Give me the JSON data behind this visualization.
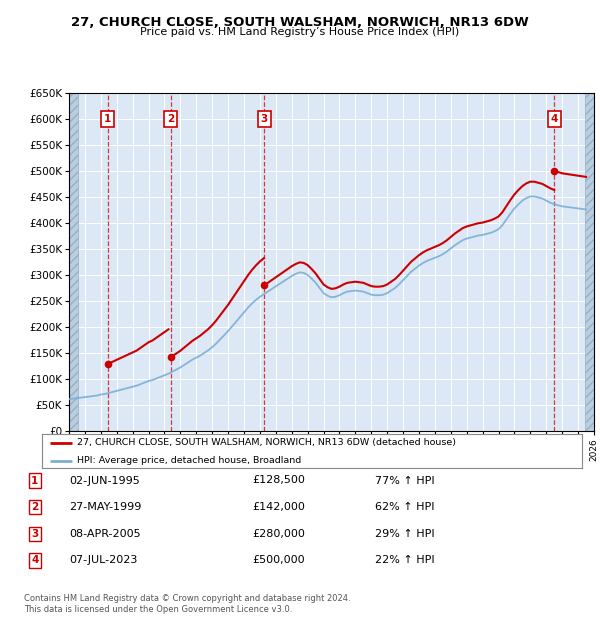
{
  "title": "27, CHURCH CLOSE, SOUTH WALSHAM, NORWICH, NR13 6DW",
  "subtitle": "Price paid vs. HM Land Registry’s House Price Index (HPI)",
  "ylim": [
    0,
    650000
  ],
  "yticks": [
    0,
    50000,
    100000,
    150000,
    200000,
    250000,
    300000,
    350000,
    400000,
    450000,
    500000,
    550000,
    600000,
    650000
  ],
  "xlim_left": 1993.0,
  "xlim_right": 2026.0,
  "plot_bg_color": "#dce8f5",
  "hatch_color": "#c5d5e8",
  "grid_color": "#ffffff",
  "purchases": [
    {
      "num": 1,
      "date": "02-JUN-1995",
      "year": 1995.42,
      "price": 128500,
      "pct": "77%",
      "dir": "↑"
    },
    {
      "num": 2,
      "date": "27-MAY-1999",
      "year": 1999.4,
      "price": 142000,
      "pct": "62%",
      "dir": "↑"
    },
    {
      "num": 3,
      "date": "08-APR-2005",
      "year": 2005.27,
      "price": 280000,
      "pct": "29%",
      "dir": "↑"
    },
    {
      "num": 4,
      "date": "07-JUL-2023",
      "year": 2023.51,
      "price": 500000,
      "pct": "22%",
      "dir": "↑"
    }
  ],
  "legend_label1": "27, CHURCH CLOSE, SOUTH WALSHAM, NORWICH, NR13 6DW (detached house)",
  "legend_label2": "HPI: Average price, detached house, Broadland",
  "footer1": "Contains HM Land Registry data © Crown copyright and database right 2024.",
  "footer2": "This data is licensed under the Open Government Licence v3.0.",
  "red_line_color": "#cc0000",
  "blue_line_color": "#7bafd4",
  "hpi_years": [
    1993.0,
    1993.25,
    1993.5,
    1993.75,
    1994.0,
    1994.25,
    1994.5,
    1994.75,
    1995.0,
    1995.25,
    1995.5,
    1995.75,
    1996.0,
    1996.25,
    1996.5,
    1996.75,
    1997.0,
    1997.25,
    1997.5,
    1997.75,
    1998.0,
    1998.25,
    1998.5,
    1998.75,
    1999.0,
    1999.25,
    1999.5,
    1999.75,
    2000.0,
    2000.25,
    2000.5,
    2000.75,
    2001.0,
    2001.25,
    2001.5,
    2001.75,
    2002.0,
    2002.25,
    2002.5,
    2002.75,
    2003.0,
    2003.25,
    2003.5,
    2003.75,
    2004.0,
    2004.25,
    2004.5,
    2004.75,
    2005.0,
    2005.25,
    2005.5,
    2005.75,
    2006.0,
    2006.25,
    2006.5,
    2006.75,
    2007.0,
    2007.25,
    2007.5,
    2007.75,
    2008.0,
    2008.25,
    2008.5,
    2008.75,
    2009.0,
    2009.25,
    2009.5,
    2009.75,
    2010.0,
    2010.25,
    2010.5,
    2010.75,
    2011.0,
    2011.25,
    2011.5,
    2011.75,
    2012.0,
    2012.25,
    2012.5,
    2012.75,
    2013.0,
    2013.25,
    2013.5,
    2013.75,
    2014.0,
    2014.25,
    2014.5,
    2014.75,
    2015.0,
    2015.25,
    2015.5,
    2015.75,
    2016.0,
    2016.25,
    2016.5,
    2016.75,
    2017.0,
    2017.25,
    2017.5,
    2017.75,
    2018.0,
    2018.25,
    2018.5,
    2018.75,
    2019.0,
    2019.25,
    2019.5,
    2019.75,
    2020.0,
    2020.25,
    2020.5,
    2020.75,
    2021.0,
    2021.25,
    2021.5,
    2021.75,
    2022.0,
    2022.25,
    2022.5,
    2022.75,
    2023.0,
    2023.25,
    2023.5,
    2023.75,
    2024.0,
    2024.25,
    2024.5,
    2024.75,
    2025.0,
    2025.25,
    2025.5
  ],
  "hpi_values": [
    61000,
    62000,
    63000,
    64000,
    65000,
    66000,
    67000,
    68000,
    70000,
    71000,
    73000,
    75000,
    77000,
    79000,
    81000,
    83000,
    85000,
    87000,
    90000,
    93000,
    96000,
    98000,
    101000,
    104000,
    107000,
    110000,
    114000,
    118000,
    122000,
    127000,
    132000,
    137000,
    141000,
    145000,
    150000,
    155000,
    161000,
    168000,
    176000,
    184000,
    192000,
    201000,
    210000,
    219000,
    228000,
    237000,
    245000,
    252000,
    258000,
    263000,
    268000,
    273000,
    278000,
    283000,
    288000,
    293000,
    298000,
    302000,
    305000,
    304000,
    300000,
    293000,
    285000,
    275000,
    265000,
    260000,
    257000,
    258000,
    261000,
    265000,
    268000,
    269000,
    270000,
    269000,
    268000,
    265000,
    262000,
    261000,
    261000,
    262000,
    265000,
    270000,
    275000,
    282000,
    290000,
    298000,
    306000,
    312000,
    318000,
    323000,
    327000,
    330000,
    333000,
    336000,
    340000,
    345000,
    351000,
    357000,
    362000,
    367000,
    370000,
    372000,
    374000,
    376000,
    377000,
    379000,
    381000,
    384000,
    388000,
    396000,
    407000,
    418000,
    428000,
    436000,
    443000,
    448000,
    451000,
    451000,
    449000,
    447000,
    443000,
    439000,
    436000,
    434000,
    432000,
    431000,
    430000,
    429000,
    428000,
    427000,
    426000
  ],
  "red_scale_factors": [
    1.0,
    1.0,
    1.0,
    1.0,
    1.0,
    1.0,
    1.0,
    1.0,
    1.0,
    1.0,
    1.0,
    1.0,
    1.0,
    1.0,
    1.0,
    1.0,
    1.0,
    1.0,
    1.0,
    1.0,
    1.0,
    1.0,
    1.0,
    1.0,
    1.0,
    1.0,
    1.0,
    1.0,
    1.0,
    1.0,
    1.0,
    1.0,
    1.0,
    1.0,
    1.0,
    1.0,
    1.0,
    1.0,
    1.0,
    1.0,
    1.0,
    1.0,
    1.0,
    1.0,
    1.0,
    1.0,
    1.0,
    1.0,
    1.0,
    1.0,
    1.0,
    1.0,
    1.0,
    1.0,
    1.0,
    1.0,
    1.0,
    1.0,
    1.0,
    1.0,
    1.0,
    1.0,
    1.0,
    1.0,
    1.0,
    1.0,
    1.0,
    1.0,
    1.0,
    1.0,
    1.0,
    1.0,
    1.0,
    1.0,
    1.0,
    1.0,
    1.0,
    1.0,
    1.0,
    1.0,
    1.0,
    1.0,
    1.0,
    1.0,
    1.0,
    1.0,
    1.0,
    1.0,
    1.0,
    1.0,
    1.0,
    1.0,
    1.0,
    1.0,
    1.0,
    1.0,
    1.0,
    1.0,
    1.0,
    1.0,
    1.0,
    1.0,
    1.0,
    1.0,
    1.0,
    1.0,
    1.0,
    1.0,
    1.0,
    1.0,
    1.0,
    1.0,
    1.0,
    1.0,
    1.0,
    1.0,
    1.0,
    1.0,
    1.0,
    1.0,
    1.0,
    1.0,
    1.0,
    1.0,
    1.0,
    1.0,
    1.0,
    1.0,
    1.0,
    1.0,
    1.0
  ]
}
